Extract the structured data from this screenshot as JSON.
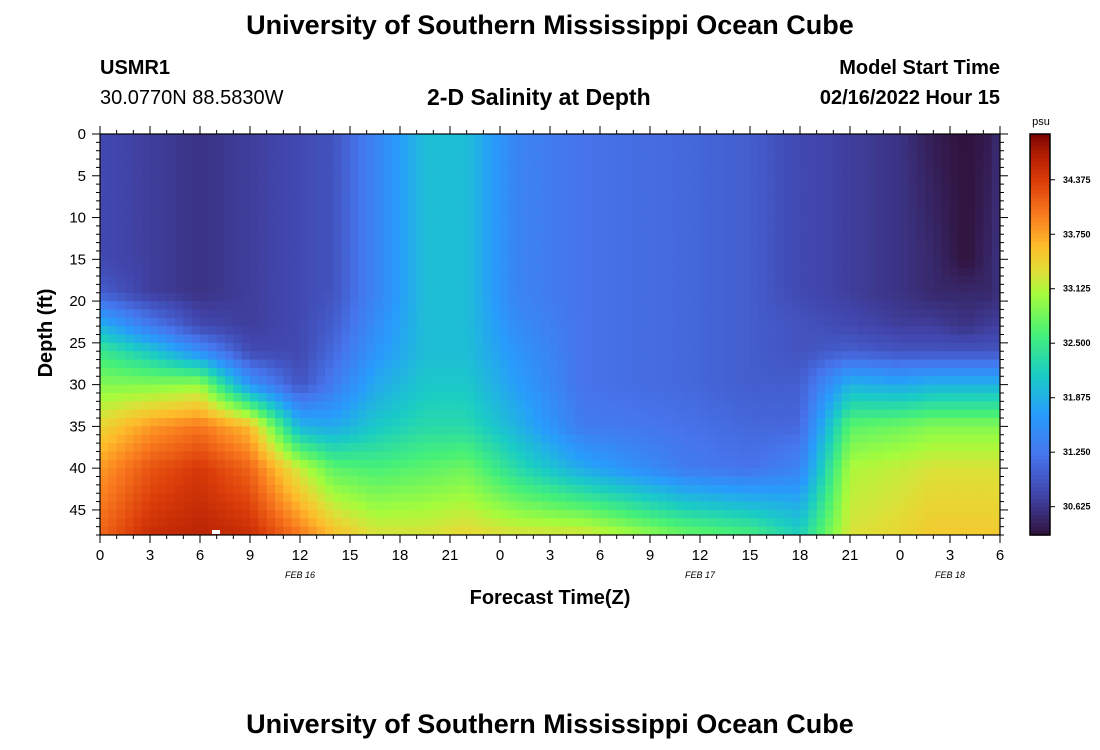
{
  "header": {
    "title": "University of Southern Mississippi Ocean Cube",
    "station_id": "USMR1",
    "station_coords": "30.0770N  88.5830W",
    "subtitle": "2-D Salinity at Depth",
    "model_start_label": "Model Start Time",
    "model_start_value": "02/16/2022 Hour 15"
  },
  "footer": {
    "title": "University of Southern Mississippi Ocean Cube"
  },
  "chart_data": {
    "type": "heatmap",
    "title": "2-D Salinity at Depth",
    "xlabel": "Forecast Time(Z)",
    "ylabel": "Depth (ft)",
    "x_range_hours": [
      0,
      54
    ],
    "y_range_ft": [
      0,
      48
    ],
    "y_inverted": true,
    "x_tick_labels": [
      "0",
      "3",
      "6",
      "9",
      "12",
      "15",
      "18",
      "21",
      "0",
      "3",
      "6",
      "9",
      "12",
      "15",
      "18",
      "21",
      "0",
      "3",
      "6"
    ],
    "y_tick_values": [
      0,
      5,
      10,
      15,
      20,
      25,
      30,
      35,
      40,
      45
    ],
    "y_tick_labels": [
      "0",
      "5",
      "10",
      "15",
      "20",
      "25",
      "30",
      "35",
      "40",
      "45"
    ],
    "date_labels": [
      {
        "text": "FEB 16",
        "hour": 12
      },
      {
        "text": "FEB 17",
        "hour": 36
      },
      {
        "text": "FEB 18",
        "hour": 51
      }
    ],
    "colorbar": {
      "unit": "psu",
      "min": 30.3,
      "max": 34.9,
      "tick_values": [
        34.375,
        33.75,
        33.125,
        32.5,
        31.875,
        31.25,
        30.625
      ],
      "tick_labels": [
        "34.375",
        "33.750",
        "33.125",
        "32.500",
        "31.875",
        "31.250",
        "30.625"
      ]
    },
    "field_columns": [
      {
        "hour": 0,
        "depth_ft": [
          0,
          15,
          19,
          23,
          26,
          30,
          35,
          40,
          48
        ],
        "psu": [
          30.8,
          30.8,
          31.0,
          31.9,
          32.5,
          32.9,
          33.4,
          33.8,
          34.1
        ]
      },
      {
        "hour": 3,
        "depth_ft": [
          0,
          15,
          19,
          23,
          26,
          30,
          35,
          40,
          48
        ],
        "psu": [
          30.7,
          30.7,
          30.7,
          31.3,
          32.1,
          32.9,
          33.8,
          34.2,
          34.5
        ]
      },
      {
        "hour": 6,
        "depth_ft": [
          0,
          15,
          19,
          23,
          26,
          30,
          35,
          40,
          48
        ],
        "psu": [
          30.6,
          30.6,
          30.6,
          30.8,
          31.5,
          33.0,
          34.0,
          34.4,
          34.6
        ]
      },
      {
        "hour": 9,
        "depth_ft": [
          0,
          15,
          19,
          23,
          26,
          30,
          35,
          40,
          48
        ],
        "psu": [
          30.7,
          30.7,
          30.7,
          30.7,
          30.8,
          31.6,
          33.6,
          34.1,
          34.5
        ]
      },
      {
        "hour": 12,
        "depth_ft": [
          0,
          15,
          19,
          23,
          26,
          30,
          35,
          40,
          48
        ],
        "psu": [
          30.8,
          30.8,
          30.8,
          30.8,
          30.8,
          30.9,
          31.9,
          33.2,
          34.0
        ]
      },
      {
        "hour": 14,
        "depth_ft": [
          0,
          15,
          19,
          23,
          26,
          30,
          35,
          40,
          48
        ],
        "psu": [
          30.9,
          30.9,
          30.9,
          31.0,
          31.1,
          31.3,
          31.8,
          32.7,
          33.6
        ]
      },
      {
        "hour": 16.5,
        "depth_ft": [
          0,
          15,
          19,
          23,
          26,
          30,
          35,
          40,
          48
        ],
        "psu": [
          31.4,
          31.4,
          31.4,
          31.5,
          31.6,
          31.8,
          32.1,
          32.6,
          33.3
        ]
      },
      {
        "hour": 19.5,
        "depth_ft": [
          0,
          15,
          19,
          23,
          26,
          30,
          35,
          40,
          48
        ],
        "psu": [
          32.0,
          32.0,
          32.0,
          32.0,
          32.0,
          32.1,
          32.3,
          32.7,
          33.3
        ]
      },
      {
        "hour": 22,
        "depth_ft": [
          0,
          15,
          19,
          23,
          26,
          30,
          35,
          40,
          48
        ],
        "psu": [
          32.0,
          32.0,
          32.0,
          32.0,
          32.0,
          32.1,
          32.3,
          32.8,
          33.4
        ]
      },
      {
        "hour": 25,
        "depth_ft": [
          0,
          15,
          19,
          23,
          26,
          30,
          35,
          40,
          48
        ],
        "psu": [
          31.4,
          31.4,
          31.4,
          31.5,
          31.6,
          31.7,
          31.9,
          32.3,
          33.3
        ]
      },
      {
        "hour": 29,
        "depth_ft": [
          0,
          15,
          19,
          23,
          26,
          30,
          35,
          40,
          48
        ],
        "psu": [
          31.2,
          31.2,
          31.2,
          31.2,
          31.2,
          31.2,
          31.3,
          31.8,
          33.3
        ]
      },
      {
        "hour": 35,
        "depth_ft": [
          0,
          15,
          19,
          23,
          26,
          30,
          35,
          40,
          48
        ],
        "psu": [
          31.1,
          31.1,
          31.1,
          31.1,
          31.1,
          31.1,
          31.2,
          31.3,
          32.8
        ]
      },
      {
        "hour": 39,
        "depth_ft": [
          0,
          15,
          19,
          23,
          26,
          30,
          35,
          40,
          48
        ],
        "psu": [
          31.0,
          31.0,
          31.0,
          31.0,
          31.0,
          31.0,
          31.1,
          31.2,
          32.6
        ]
      },
      {
        "hour": 42,
        "depth_ft": [
          0,
          15,
          19,
          23,
          26,
          30,
          35,
          40,
          48
        ],
        "psu": [
          30.8,
          30.8,
          30.8,
          30.9,
          30.9,
          31.0,
          31.1,
          31.4,
          32.2
        ]
      },
      {
        "hour": 45,
        "depth_ft": [
          0,
          15,
          19,
          23,
          26,
          30,
          35,
          40,
          48
        ],
        "psu": [
          30.7,
          30.7,
          30.7,
          30.8,
          31.0,
          31.9,
          32.7,
          33.1,
          33.3
        ]
      },
      {
        "hour": 48,
        "depth_ft": [
          0,
          15,
          19,
          23,
          26,
          30,
          35,
          40,
          48
        ],
        "psu": [
          30.6,
          30.6,
          30.6,
          30.7,
          30.9,
          31.8,
          32.8,
          33.2,
          33.4
        ]
      },
      {
        "hour": 50,
        "depth_ft": [
          0,
          15,
          19,
          23,
          26,
          30,
          35,
          40,
          48
        ],
        "psu": [
          30.4,
          30.5,
          30.5,
          30.7,
          30.9,
          31.9,
          32.9,
          33.3,
          33.5
        ]
      },
      {
        "hour": 52,
        "depth_ft": [
          0,
          15,
          19,
          23,
          26,
          30,
          35,
          40,
          48
        ],
        "psu": [
          30.3,
          30.3,
          30.5,
          30.6,
          30.9,
          31.9,
          32.9,
          33.3,
          33.5
        ]
      },
      {
        "hour": 53.5,
        "depth_ft": [
          0,
          15,
          19,
          23,
          26,
          30,
          35,
          40,
          48
        ],
        "psu": [
          30.4,
          30.5,
          30.5,
          30.7,
          30.9,
          31.9,
          32.9,
          33.3,
          33.5
        ]
      },
      {
        "hour": 54,
        "depth_ft": [
          0,
          15,
          19,
          23,
          26,
          30,
          35,
          40,
          48
        ],
        "psu": [
          30.6,
          30.6,
          30.6,
          30.7,
          30.9,
          31.9,
          32.9,
          33.3,
          33.5
        ]
      }
    ]
  }
}
